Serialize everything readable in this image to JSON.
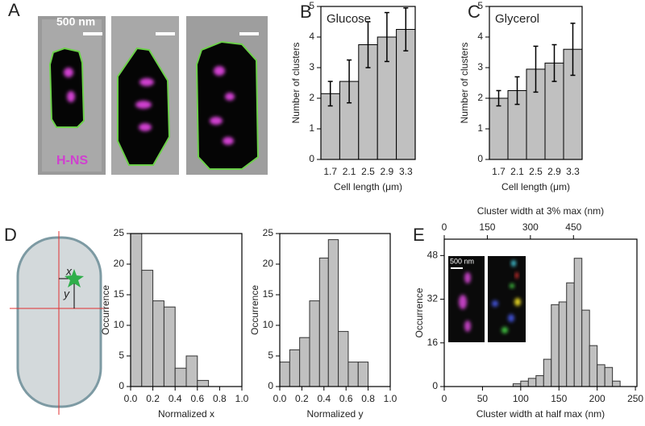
{
  "panel_labels": [
    "A",
    "B",
    "C",
    "D",
    "E"
  ],
  "panel_a": {
    "scale_bar": "500 nm",
    "stain": "H-NS"
  },
  "panel_d": {
    "x_label": "x",
    "y_label": "y"
  },
  "panel_e": {
    "inset_scale_bar": "500 nm"
  },
  "chart_data": [
    {
      "type": "bar",
      "title": "Glucose",
      "categories": [
        "1.7",
        "2.1",
        "2.5",
        "2.9",
        "3.3"
      ],
      "values": [
        2.15,
        2.55,
        3.75,
        4.0,
        4.25
      ],
      "errors": [
        0.4,
        0.7,
        0.75,
        0.8,
        0.7
      ],
      "color": "#c0c0c0",
      "ylim": [
        0,
        5
      ],
      "yticks": [
        0,
        1,
        2,
        3,
        4,
        5
      ],
      "xlabel": "Cell length (μm)",
      "ylabel": "Number of clusters"
    },
    {
      "type": "bar",
      "title": "Glycerol",
      "categories": [
        "1.7",
        "2.1",
        "2.5",
        "2.9",
        "3.3"
      ],
      "values": [
        2.0,
        2.25,
        2.95,
        3.15,
        3.6
      ],
      "errors": [
        0.25,
        0.45,
        0.75,
        0.6,
        0.85
      ],
      "color": "#c0c0c0",
      "ylim": [
        0,
        5
      ],
      "yticks": [
        0,
        1,
        2,
        3,
        4,
        5
      ],
      "xlabel": "Cell length (μm)",
      "ylabel": "Number of clusters"
    },
    {
      "type": "histogram",
      "bins": [
        0,
        0.1,
        0.2,
        0.3,
        0.4,
        0.5,
        0.6,
        0.7
      ],
      "counts": [
        25,
        19,
        14,
        13,
        3,
        5,
        1
      ],
      "color": "#c0c0c0",
      "xlim": [
        0,
        1
      ],
      "xticks": [
        {
          "value": 0,
          "label": "0.0"
        },
        0.2,
        0.4,
        0.6,
        0.8,
        {
          "value": 1,
          "label": "1.0"
        }
      ],
      "ylim": [
        0,
        25
      ],
      "yticks": [
        0,
        5,
        10,
        15,
        20,
        25
      ],
      "xlabel": "Normalized x",
      "ylabel": "Occurrence"
    },
    {
      "type": "histogram",
      "bins": [
        0,
        0.09,
        0.18,
        0.27,
        0.36,
        0.44,
        0.53,
        0.62,
        0.71,
        0.8
      ],
      "counts": [
        4,
        6,
        8,
        14,
        21,
        24,
        9,
        4,
        4
      ],
      "color": "#c0c0c0",
      "xlim": [
        0,
        1
      ],
      "xticks": [
        {
          "value": 0,
          "label": "0.0"
        },
        0.2,
        0.4,
        0.6,
        0.8,
        {
          "value": 1,
          "label": "1.0"
        }
      ],
      "ylim": [
        0,
        25
      ],
      "yticks": [
        0,
        5,
        10,
        15,
        20,
        25
      ],
      "xlabel": "Normalized y",
      "ylabel": "Occurrence"
    },
    {
      "type": "histogram",
      "bins": [
        90,
        100,
        110,
        120,
        130,
        140,
        150,
        160,
        170,
        180,
        190,
        200,
        210,
        220,
        230
      ],
      "counts": [
        1,
        2,
        3,
        4,
        10,
        30,
        31,
        38,
        47,
        28,
        15,
        8,
        7,
        2
      ],
      "color": "#c0c0c0",
      "xlim": [
        0,
        252
      ],
      "xticks": [
        0,
        50,
        100,
        150,
        200,
        250
      ],
      "ylim": [
        0,
        54
      ],
      "yticks": [
        0,
        16,
        32,
        48
      ],
      "xlabel": "Cluster width at half max (nm)",
      "ylabel": "Occurrence",
      "x2lim": [
        0,
        671
      ],
      "x2ticks": [
        0,
        150,
        300,
        450
      ],
      "x2label": "Cluster width at 3% max (nm)"
    }
  ]
}
